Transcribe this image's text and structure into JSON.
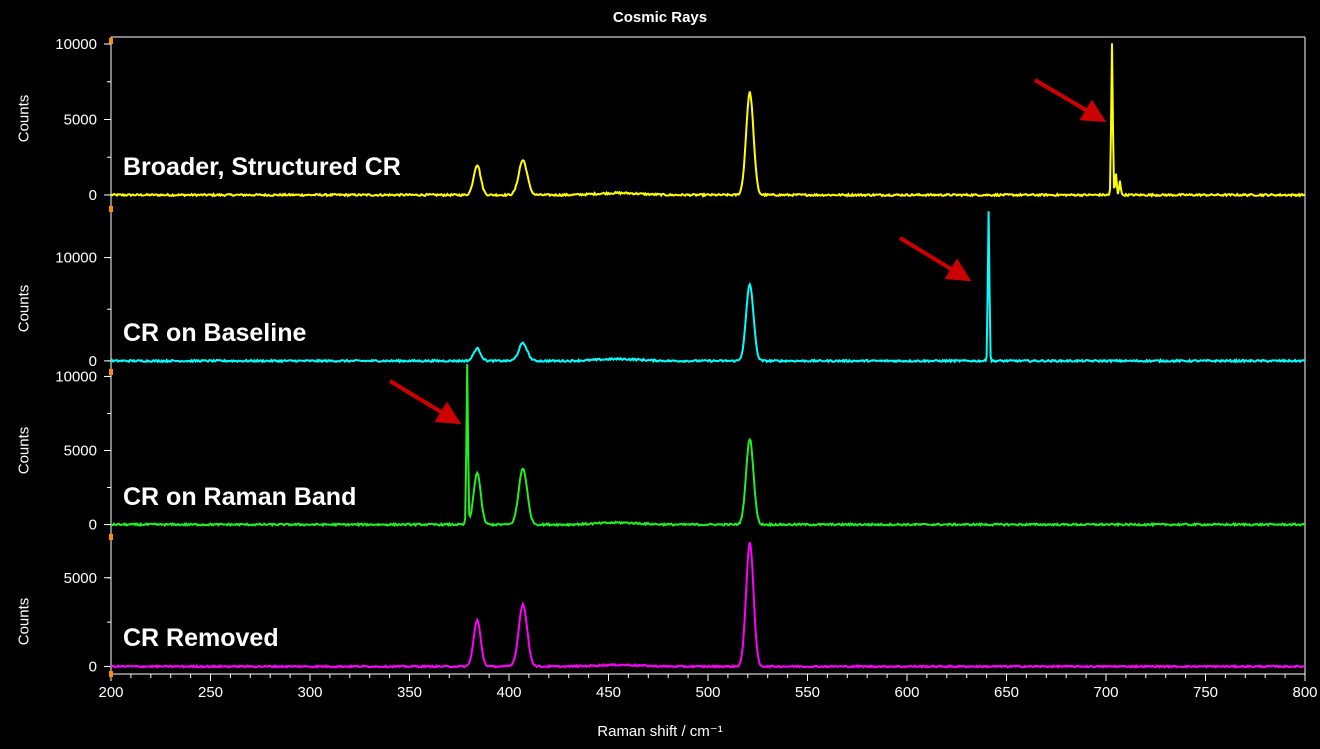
{
  "chart_data": {
    "type": "line",
    "title": "Cosmic Rays",
    "xlabel": "Raman shift / cm⁻¹",
    "xlim": [
      200,
      800
    ],
    "xticks": [
      200,
      250,
      300,
      350,
      400,
      450,
      500,
      550,
      600,
      650,
      700,
      750,
      800
    ],
    "grid": false,
    "panels": [
      {
        "ylabel": "Counts",
        "label": "Broader, Structured CR",
        "color": "#ffff00",
        "yticks": [
          0,
          5000,
          10000
        ],
        "ylim": [
          -400,
          10200
        ],
        "raman_peaks": [
          {
            "x": 384,
            "y": 2000,
            "w": 2.5
          },
          {
            "x": 407,
            "y": 2300,
            "w": 3.0
          },
          {
            "x": 521,
            "y": 6800,
            "w": 2.6
          }
        ],
        "cosmic_ray": [
          {
            "x": 703,
            "y": 10000
          },
          {
            "x": 705,
            "y": 1400
          },
          {
            "x": 707,
            "y": 1000
          }
        ]
      },
      {
        "ylabel": "Counts",
        "label": "CR on Baseline",
        "color": "#00ffff",
        "yticks": [
          0,
          10000
        ],
        "ylim": [
          -300,
          14700
        ],
        "raman_peaks": [
          {
            "x": 384,
            "y": 1200,
            "w": 2.5
          },
          {
            "x": 407,
            "y": 1700,
            "w": 3.0
          },
          {
            "x": 521,
            "y": 7400,
            "w": 2.6
          }
        ],
        "cosmic_ray": [
          {
            "x": 641,
            "y": 14500
          }
        ]
      },
      {
        "ylabel": "Counts",
        "label": "CR on Raman Band",
        "color": "#22ee22",
        "yticks": [
          0,
          5000,
          10000
        ],
        "ylim": [
          -300,
          10300
        ],
        "raman_peaks": [
          {
            "x": 384,
            "y": 3500,
            "w": 2.5
          },
          {
            "x": 407,
            "y": 3800,
            "w": 3.0
          },
          {
            "x": 521,
            "y": 5800,
            "w": 2.6
          }
        ],
        "cosmic_ray": [
          {
            "x": 379,
            "y": 10800
          }
        ]
      },
      {
        "ylabel": "Counts",
        "label": "CR Removed",
        "color": "#ff00ff",
        "yticks": [
          0,
          5000
        ],
        "ylim": [
          -200,
          7300
        ],
        "raman_peaks": [
          {
            "x": 384,
            "y": 2600,
            "w": 2.5
          },
          {
            "x": 407,
            "y": 3500,
            "w": 3.0
          },
          {
            "x": 521,
            "y": 7000,
            "w": 2.6
          }
        ],
        "cosmic_ray": []
      }
    ],
    "annotations": [
      {
        "type": "arrow",
        "panel": 0,
        "color": "#cc0000",
        "points_to_x": 700
      },
      {
        "type": "arrow",
        "panel": 1,
        "color": "#cc0000",
        "points_to_x": 633
      },
      {
        "type": "arrow",
        "panel": 2,
        "color": "#cc0000",
        "points_to_x": 378
      }
    ]
  }
}
